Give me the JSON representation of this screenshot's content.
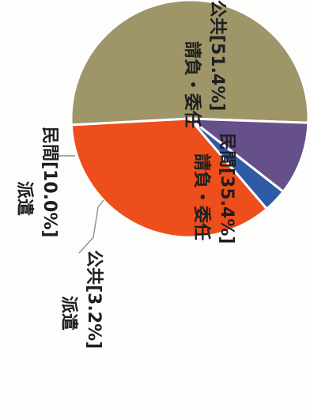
{
  "chart_data": {
    "type": "pie",
    "title": "",
    "slices": [
      {
        "line1": "請負・委任",
        "line2": "公共[51.4%]",
        "value": 51.4,
        "color": "#9e9569"
      },
      {
        "line1": "請負・委任",
        "line2": "民間[35.4%]",
        "value": 35.4,
        "color": "#ee4e1b"
      },
      {
        "line1": "派遣",
        "line2": "公共[3.2%]",
        "value": 3.2,
        "color": "#2f5aa6"
      },
      {
        "line1": "派遣",
        "line2": "民間[10.0%]",
        "value": 10.0,
        "color": "#66508a"
      }
    ]
  }
}
